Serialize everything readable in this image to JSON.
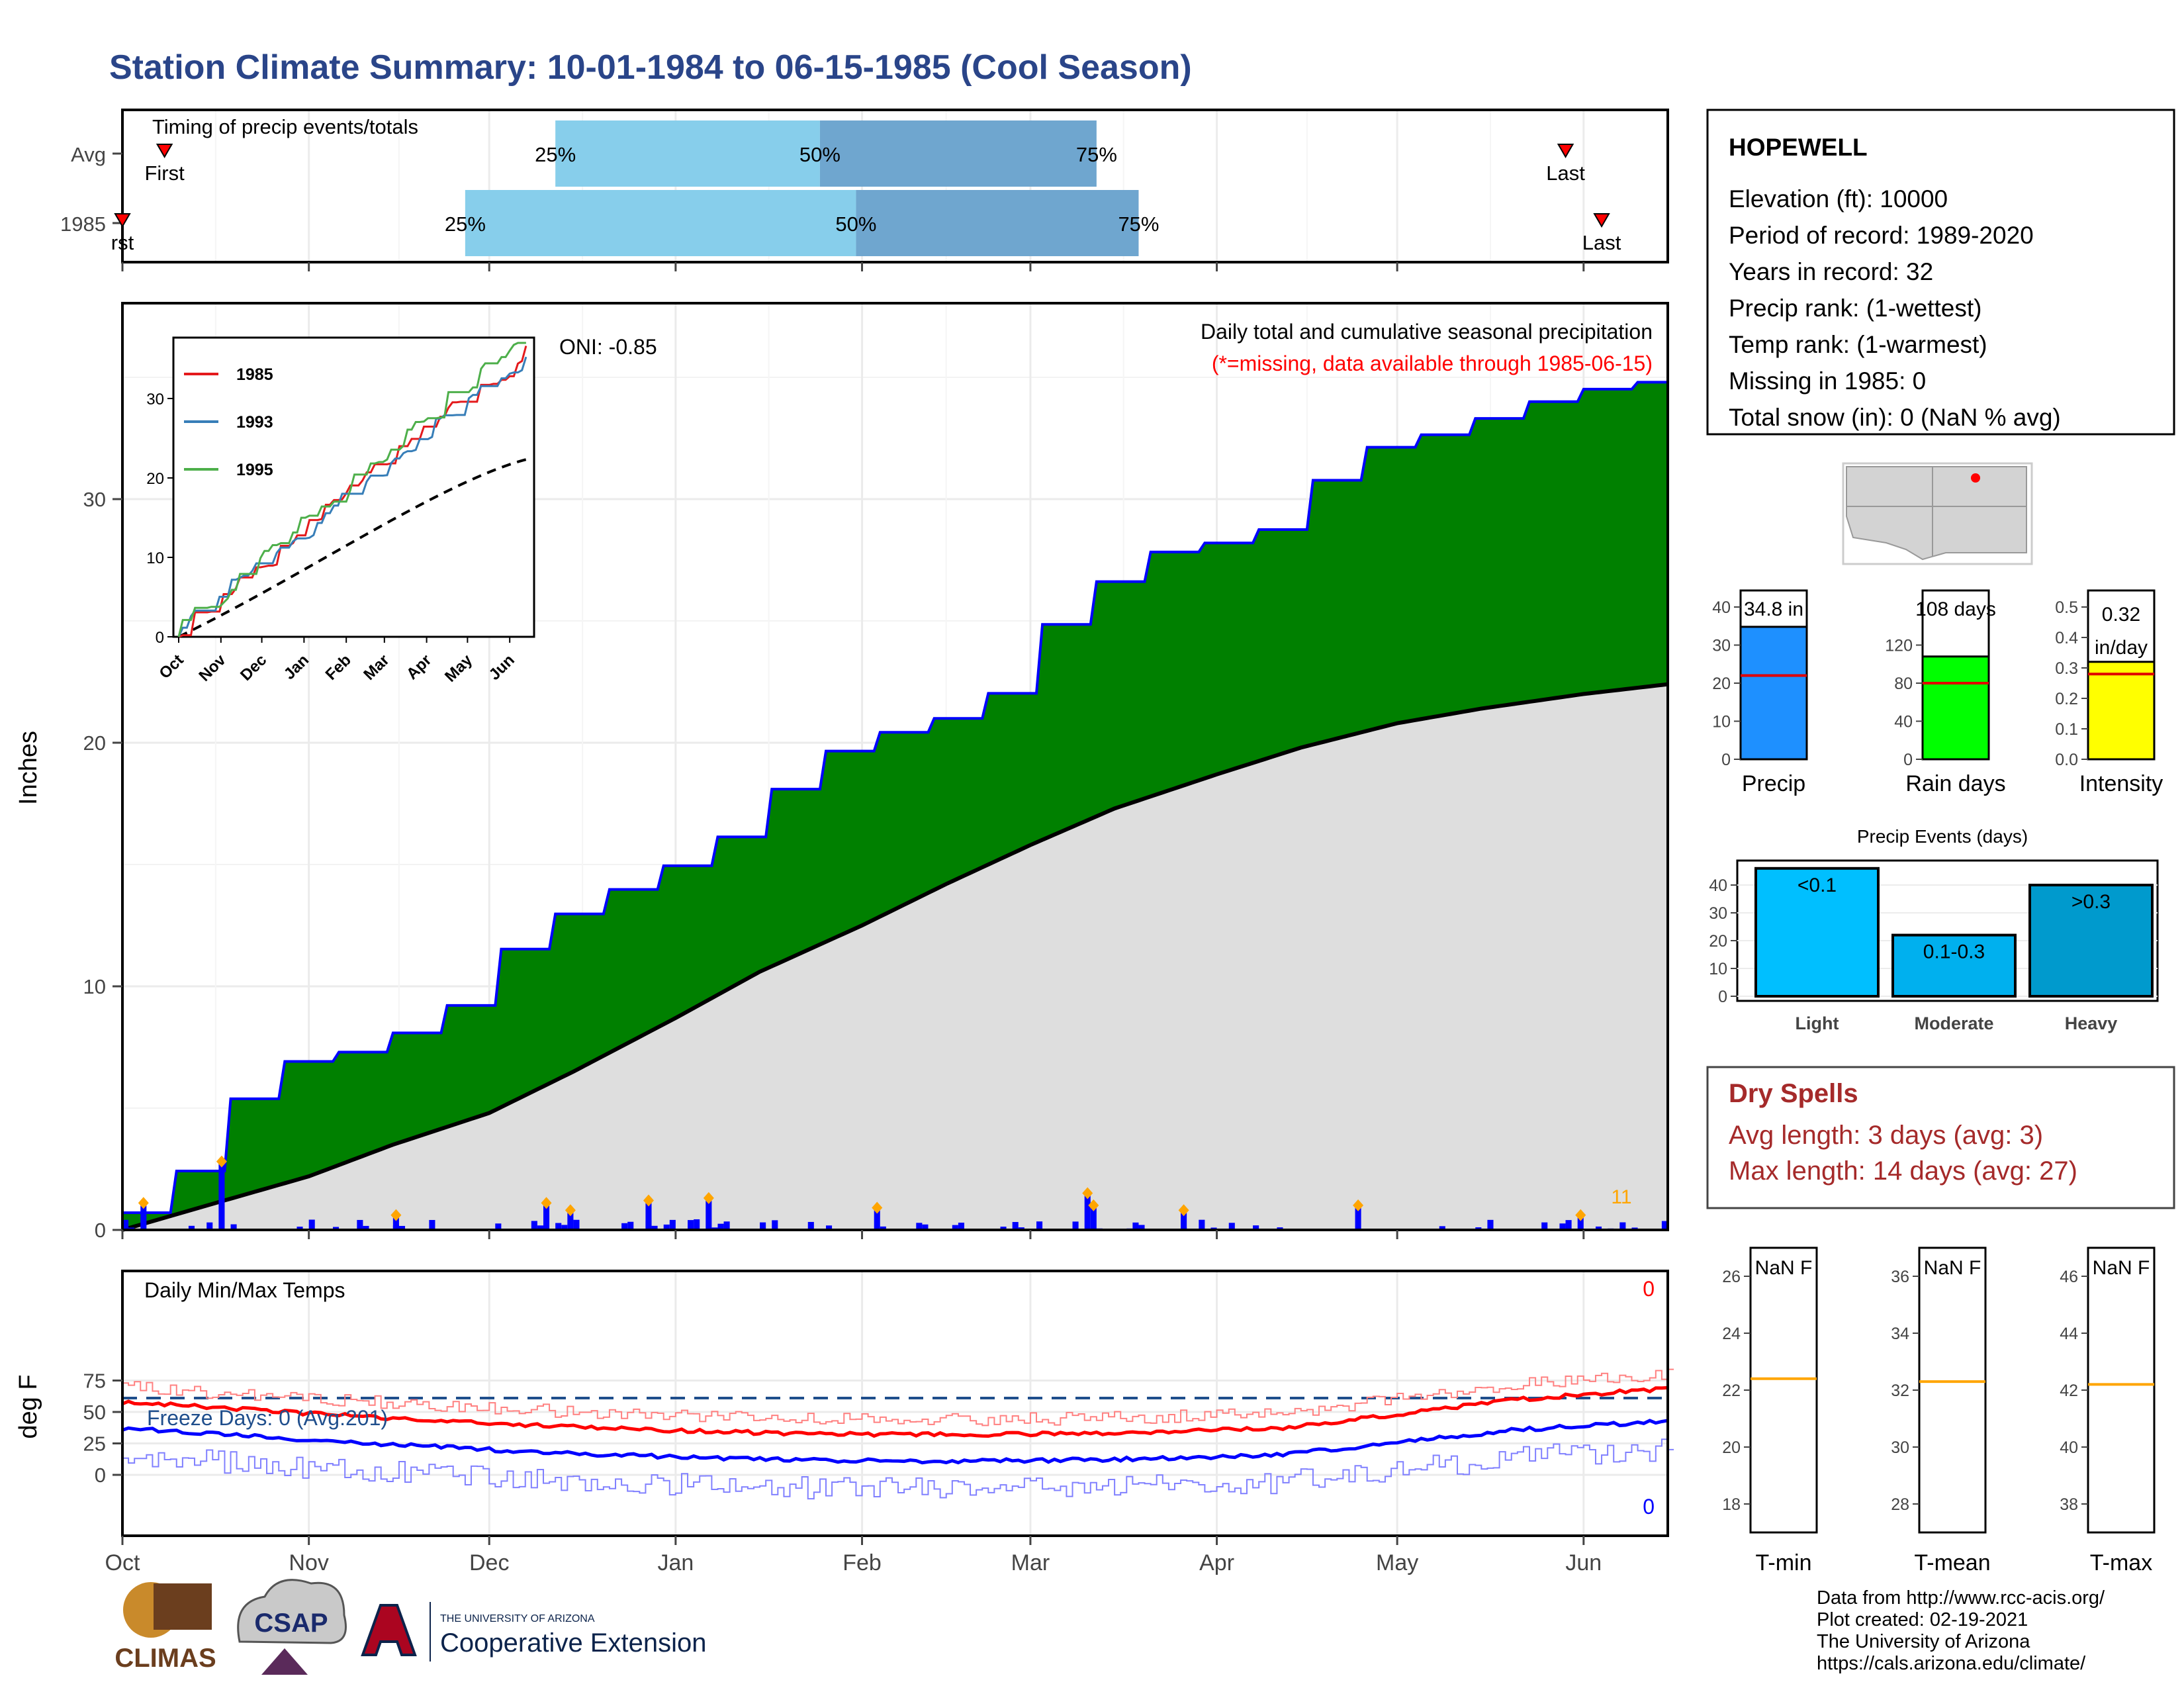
{
  "title": "Station Climate Summary: 10-01-1984 to 06-15-1985 (Cool Season)",
  "colors": {
    "title": "#2a4589",
    "cum_fill": "#008000",
    "cum_line": "#0000ff",
    "avg_fill": "#dedede",
    "avg_line": "#000000",
    "bar": "#0000ff",
    "marker": "#ffa500",
    "q1": "#87ceeb",
    "q2": "#6fa6cf",
    "tmax": "#ff0000",
    "tmin": "#0000ff",
    "freeze": "#1f4e8c",
    "dry": "#a52a2a",
    "precip_bar": "#1e90ff",
    "rain_bar": "#00ff00",
    "int_bar": "#ffff00",
    "ev_light": "#00bfff",
    "ev_mod": "#00b0ee",
    "ev_heavy": "#009acd"
  },
  "timing": {
    "label": "Timing of precip events/totals",
    "rows": [
      {
        "name": "Avg",
        "first_label": "First",
        "last_label": "Last",
        "first": "1984-10-08",
        "q25": "1984-12-12",
        "q50": "1985-01-25",
        "q75": "1985-03-12",
        "last": "1985-05-29",
        "labels": {
          "p25": "25%",
          "p50": "50%",
          "p75": "75%"
        }
      },
      {
        "name": "1985",
        "first_label": "rst",
        "last_label": "Last",
        "first": "1984-10-01",
        "q25": "1984-11-27",
        "q50": "1985-01-31",
        "q75": "1985-03-19",
        "last": "1985-06-04",
        "labels": {
          "p25": "25%",
          "p50": "50%",
          "p75": "75%"
        }
      }
    ]
  },
  "main": {
    "ylabel": "Inches",
    "oni": "ONI: -0.85",
    "header": "Daily total and cumulative seasonal precipitation",
    "note": "(*=missing, data available through 1985-06-15)",
    "count_label": "11",
    "x_ticks": [
      "Oct",
      "Nov",
      "Dec",
      "Jan",
      "Feb",
      "Mar",
      "Apr",
      "May",
      "Jun"
    ],
    "y_ticks": [
      "0",
      "10",
      "20",
      "30"
    ]
  },
  "inset": {
    "legend": [
      "1985",
      "1993",
      "1995"
    ],
    "series_colors": [
      "#e41a1c",
      "#377eb8",
      "#4daf4a"
    ],
    "x_ticks": [
      "Oct",
      "Nov",
      "Dec",
      "Jan",
      "Feb",
      "Mar",
      "Apr",
      "May",
      "Jun"
    ],
    "y_ticks": [
      "0",
      "10",
      "20",
      "30"
    ]
  },
  "temps": {
    "ylabel": "deg F",
    "label": "Daily Min/Max Temps",
    "freeze_label": "Freeze Days: 0 (Avg:201)",
    "max_count": "0",
    "min_count": "0",
    "y_ticks": [
      "0",
      "25",
      "50",
      "75"
    ]
  },
  "station": {
    "name": "HOPEWELL",
    "lines": [
      "Elevation (ft): 10000",
      "Period of record: 1989-2020",
      "Years in record: 32",
      "Precip rank:  (1-wettest)",
      "Temp rank:  (1-warmest)",
      "Missing in 1985: 0",
      "Total snow (in): 0 (NaN % avg)"
    ]
  },
  "stats": [
    {
      "label": "Precip",
      "value_label": "34.8 in",
      "value": 34.8,
      "avg": 22,
      "ymax": 40,
      "ticks": [
        "0",
        "10",
        "20",
        "30",
        "40"
      ]
    },
    {
      "label": "Rain days",
      "value_label": "108 days",
      "value": 108,
      "avg": 80,
      "ymax": 160,
      "ticks": [
        "0",
        "40",
        "80",
        "120"
      ]
    },
    {
      "label": "Intensity",
      "value_label": "0.32\nin/day",
      "value": 0.32,
      "avg": 0.28,
      "ymax": 0.5,
      "ticks": [
        "0.0",
        "0.1",
        "0.2",
        "0.3",
        "0.4",
        "0.5"
      ]
    }
  ],
  "events": {
    "title": "Precip Events (days)",
    "ticks": [
      "0",
      "10",
      "20",
      "30",
      "40"
    ],
    "bars": [
      {
        "label": "Light",
        "bin": "<0.1",
        "value": 46
      },
      {
        "label": "Moderate",
        "bin": "0.1-0.3",
        "value": 22
      },
      {
        "label": "Heavy",
        "bin": ">0.3",
        "value": 40
      }
    ]
  },
  "dry": {
    "title": "Dry Spells",
    "avg_line": "Avg length: 3 days (avg: 3)",
    "max_line": "Max length: 14 days (avg: 27)"
  },
  "temp_boxes": [
    {
      "label": "T-min",
      "value": "NaN F",
      "ticks": [
        "18",
        "20",
        "22",
        "24",
        "26"
      ],
      "avg": 22.4,
      "range": [
        17,
        27
      ]
    },
    {
      "label": "T-mean",
      "value": "NaN F",
      "ticks": [
        "28",
        "30",
        "32",
        "34",
        "36"
      ],
      "avg": 32.3,
      "range": [
        27,
        37
      ]
    },
    {
      "label": "T-max",
      "value": "NaN F",
      "ticks": [
        "38",
        "40",
        "42",
        "44",
        "46"
      ],
      "avg": 42.2,
      "range": [
        37,
        47
      ]
    }
  ],
  "credits": [
    "Data from http://www.rcc-acis.org/",
    "Plot created: 02-19-2021",
    "The University of Arizona",
    "https://cals.arizona.edu/climate/"
  ],
  "logos": {
    "climas": "CLIMAS",
    "csap": "CSAP",
    "ua_small": "THE UNIVERSITY OF ARIZONA",
    "ua_big": "Cooperative Extension"
  },
  "chart_data": {
    "type": "area",
    "title": "Station Climate Summary: 10-01-1984 to 06-15-1985 (Cool Season)",
    "ylabel": "Inches",
    "ylim": [
      0,
      37.5
    ],
    "x": [
      "10-01",
      "10-15",
      "11-01",
      "11-15",
      "12-01",
      "12-15",
      "01-01",
      "01-15",
      "02-01",
      "02-15",
      "03-01",
      "03-15",
      "04-01",
      "04-15",
      "05-01",
      "05-15",
      "06-01",
      "06-15"
    ],
    "series": [
      {
        "name": "1985",
        "values": [
          0,
          1.1,
          6.7,
          7.3,
          8.7,
          12.3,
          14.2,
          15.7,
          19.4,
          20.6,
          21.4,
          25.8,
          28.1,
          28.3,
          31.9,
          32.7,
          34.0,
          34.8
        ]
      },
      {
        "name": "Avg",
        "values": [
          0,
          1.0,
          2.2,
          3.5,
          4.8,
          6.5,
          8.7,
          10.6,
          12.5,
          14.2,
          15.8,
          17.3,
          18.7,
          19.8,
          20.8,
          21.4,
          22.0,
          22.4
        ]
      }
    ],
    "daily_events": [
      {
        "date": "1984-10-04",
        "value": 1.0
      },
      {
        "date": "1984-10-17",
        "value": 2.7
      },
      {
        "date": "1984-11-15",
        "value": 0.5
      },
      {
        "date": "1984-12-10",
        "value": 1.0
      },
      {
        "date": "1984-12-14",
        "value": 0.7
      },
      {
        "date": "1984-12-27",
        "value": 1.1
      },
      {
        "date": "1985-01-06",
        "value": 1.2
      },
      {
        "date": "1985-02-03",
        "value": 0.8
      },
      {
        "date": "1985-03-10",
        "value": 1.4
      },
      {
        "date": "1985-03-11",
        "value": 0.9
      },
      {
        "date": "1985-03-26",
        "value": 0.7
      },
      {
        "date": "1985-04-24",
        "value": 0.9
      },
      {
        "date": "1985-05-31",
        "value": 0.5
      }
    ]
  }
}
